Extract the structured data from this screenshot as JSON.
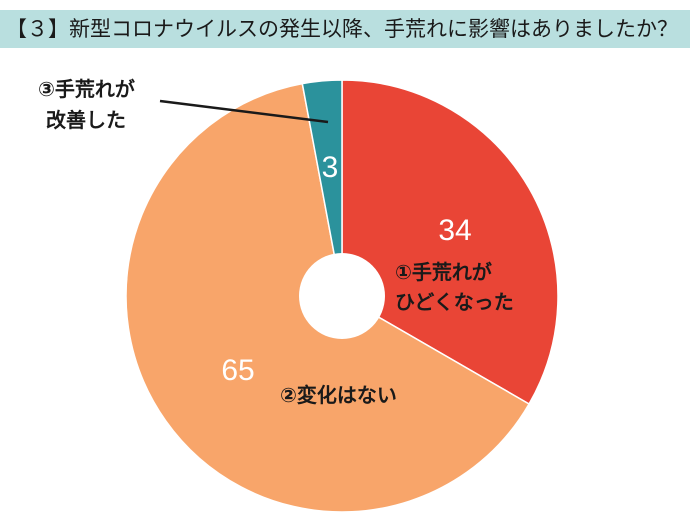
{
  "title": "【３】新型コロナウイルスの発生以降、手荒れに影響はありましたか？",
  "chart_data": {
    "type": "pie",
    "donut": true,
    "title": "【３】新型コロナウイルスの発生以降、手荒れに影響はありましたか？",
    "categories": [
      "①手荒れがひどくなった",
      "②変化はない",
      "③手荒れが改善した"
    ],
    "values": [
      34,
      65,
      3
    ],
    "colors": [
      "#e94536",
      "#f8a56a",
      "#2b929c"
    ],
    "slices": [
      {
        "label_lines": [
          "①手荒れが",
          "ひどくなった"
        ],
        "value": 34,
        "value_text": "34",
        "color": "#e94536"
      },
      {
        "label_lines": [
          "②変化はない"
        ],
        "value": 65,
        "value_text": "65",
        "color": "#f8a56a"
      },
      {
        "label_lines": [
          "③手荒れが",
          "改善した"
        ],
        "value": 3,
        "value_text": "3",
        "color": "#2b929c"
      }
    ],
    "legend": "none"
  }
}
